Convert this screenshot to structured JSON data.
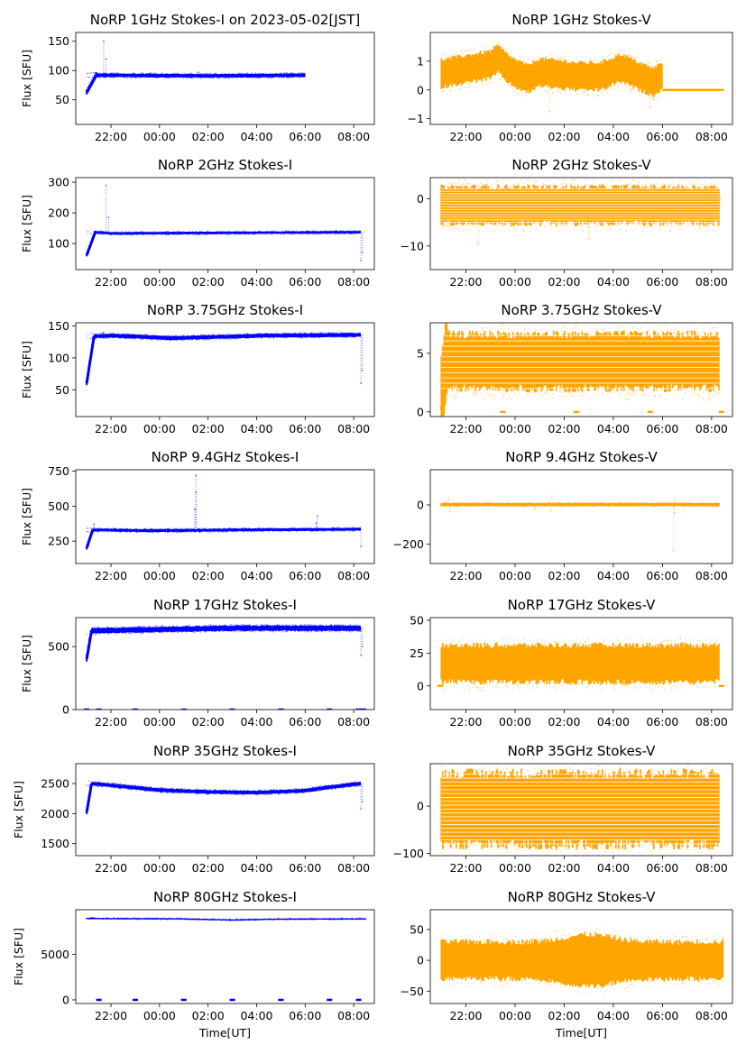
{
  "figure": {
    "colors": {
      "stokes_i": "#0000ff",
      "stokes_v": "#ffa500"
    },
    "time_ticks": [
      "22:00",
      "00:00",
      "02:00",
      "04:00",
      "06:00",
      "08:00"
    ]
  },
  "chart_data": [
    {
      "id": "1ghz-i",
      "type": "scatter",
      "title": "NoRP 1GHz Stokes-I on 2023-05-02[JST]",
      "xlabel": "",
      "ylabel": "Flux [SFU]",
      "ylim": [
        8,
        165
      ],
      "yticks": [
        {
          "v": 50,
          "label": "50"
        },
        {
          "v": 100,
          "label": "100"
        },
        {
          "v": 150,
          "label": "150"
        }
      ],
      "series": [
        {
          "name": "Stokes-I",
          "t_start": 21.0,
          "t_end": 30.0,
          "rise_from": 62,
          "rise_hours": 0.4,
          "levels": [
            [
              21.4,
              92
            ],
            [
              26.0,
              91
            ],
            [
              30.0,
              92
            ]
          ],
          "band_low": -3,
          "band_high": 3,
          "spikes": [
            [
              21.7,
              150
            ],
            [
              21.8,
              120
            ],
            [
              25.6,
              97
            ]
          ]
        }
      ]
    },
    {
      "id": "1ghz-v",
      "type": "scatter",
      "title": "NoRP 1GHz Stokes-V",
      "xlabel": "",
      "ylabel": "",
      "ylim": [
        -1.2,
        2.0
      ],
      "yticks": [
        {
          "v": -1,
          "label": "−1"
        },
        {
          "v": 0,
          "label": "0"
        },
        {
          "v": 1,
          "label": "1"
        }
      ],
      "series": [
        {
          "name": "Stokes-V",
          "t_start": 21.0,
          "t_end": 30.0,
          "levels": [
            [
              21.0,
              0.6
            ],
            [
              22.0,
              0.75
            ],
            [
              23.0,
              0.9
            ],
            [
              23.3,
              1.1
            ],
            [
              23.8,
              0.7
            ],
            [
              24.5,
              0.4
            ],
            [
              25.0,
              0.65
            ],
            [
              26.5,
              0.5
            ],
            [
              27.5,
              0.5
            ],
            [
              28.3,
              0.8
            ],
            [
              28.8,
              0.6
            ],
            [
              29.6,
              0.3
            ],
            [
              30.0,
              0.5
            ]
          ],
          "band_low": -0.5,
          "band_high": 0.45,
          "flat_after": 30.0,
          "flat_value": 0.0,
          "flat_end": 32.5,
          "spikes": [
            [
              25.4,
              -0.75
            ],
            [
              29.5,
              -0.6
            ]
          ]
        }
      ]
    },
    {
      "id": "2ghz-i",
      "type": "scatter",
      "title": "NoRP 2GHz Stokes-I",
      "xlabel": "",
      "ylabel": "Flux [SFU]",
      "ylim": [
        15,
        315
      ],
      "yticks": [
        {
          "v": 100,
          "label": "100"
        },
        {
          "v": 200,
          "label": "200"
        },
        {
          "v": 300,
          "label": "300"
        }
      ],
      "series": [
        {
          "name": "Stokes-I",
          "t_start": 21.0,
          "t_end": 32.3,
          "rise_from": 62,
          "rise_hours": 0.35,
          "levels": [
            [
              21.3,
              137
            ],
            [
              22.0,
              133
            ],
            [
              27.0,
              135
            ],
            [
              32.3,
              137
            ]
          ],
          "band_low": -4,
          "band_high": 4,
          "spikes": [
            [
              21.8,
              290
            ],
            [
              21.9,
              185
            ],
            [
              32.3,
              45
            ],
            [
              32.35,
              70
            ]
          ]
        }
      ]
    },
    {
      "id": "2ghz-v",
      "type": "scatter",
      "title": "NoRP 2GHz Stokes-V",
      "xlabel": "",
      "ylabel": "",
      "ylim": [
        -15,
        4.5
      ],
      "yticks": [
        {
          "v": -10,
          "label": "−10"
        },
        {
          "v": 0,
          "label": "0"
        }
      ],
      "series": [
        {
          "name": "Stokes-V",
          "t_start": 21.0,
          "t_end": 32.3,
          "striped": true,
          "stripe_min": -5.0,
          "stripe_max": 2.5,
          "stripe_step": 0.55,
          "levels": [
            [
              21.0,
              -1.2
            ],
            [
              32.3,
              -1.2
            ]
          ],
          "band_low": -4,
          "band_high": 3.7,
          "spikes": [
            [
              22.5,
              -9.5
            ],
            [
              27.0,
              -8.5
            ],
            [
              32.35,
              0.2
            ]
          ]
        }
      ]
    },
    {
      "id": "3ghz-i",
      "type": "scatter",
      "title": "NoRP 3.75GHz Stokes-I",
      "xlabel": "",
      "ylabel": "Flux [SFU]",
      "ylim": [
        8,
        155
      ],
      "yticks": [
        {
          "v": 50,
          "label": "50"
        },
        {
          "v": 100,
          "label": "100"
        },
        {
          "v": 150,
          "label": "150"
        }
      ],
      "series": [
        {
          "name": "Stokes-I",
          "t_start": 21.0,
          "t_end": 32.3,
          "rise_from": 60,
          "rise_hours": 0.3,
          "levels": [
            [
              21.3,
              134
            ],
            [
              22.0,
              135
            ],
            [
              24.5,
              131
            ],
            [
              26.5,
              133
            ],
            [
              28.5,
              135
            ],
            [
              32.3,
              136
            ]
          ],
          "band_low": -3,
          "band_high": 3,
          "spikes": [
            [
              21.7,
              140
            ],
            [
              32.3,
              60
            ],
            [
              32.35,
              80
            ]
          ]
        }
      ]
    },
    {
      "id": "3ghz-v",
      "type": "scatter",
      "title": "NoRP 3.75GHz Stokes-V",
      "xlabel": "",
      "ylabel": "",
      "ylim": [
        -0.4,
        7.6
      ],
      "yticks": [
        {
          "v": 0,
          "label": "0"
        },
        {
          "v": 5,
          "label": "5"
        }
      ],
      "series": [
        {
          "name": "Stokes-V",
          "t_start": 21.0,
          "t_end": 32.3,
          "striped": true,
          "stripe_min": 2.0,
          "stripe_max": 6.5,
          "stripe_step": 0.45,
          "levels": [
            [
              21.0,
              4.3
            ],
            [
              32.3,
              4.3
            ]
          ],
          "band_low": -2.3,
          "band_high": 2.3,
          "rise_from": 0.2,
          "rise_hours": 0.25,
          "flat_marks": [
            [
              23.5,
              0.0
            ],
            [
              26.5,
              0.0
            ],
            [
              29.5,
              0.0
            ],
            [
              32.4,
              0.0
            ]
          ]
        }
      ]
    },
    {
      "id": "9ghz-i",
      "type": "scatter",
      "title": "NoRP 9.4GHz Stokes-I",
      "xlabel": "",
      "ylabel": "Flux [SFU]",
      "ylim": [
        90,
        760
      ],
      "yticks": [
        {
          "v": 250,
          "label": "250"
        },
        {
          "v": 500,
          "label": "500"
        },
        {
          "v": 750,
          "label": "750"
        }
      ],
      "series": [
        {
          "name": "Stokes-I",
          "t_start": 21.0,
          "t_end": 32.3,
          "rise_from": 200,
          "rise_hours": 0.25,
          "levels": [
            [
              21.3,
              330
            ],
            [
              24.0,
              325
            ],
            [
              27.0,
              330
            ],
            [
              32.3,
              335
            ]
          ],
          "band_low": -10,
          "band_high": 10,
          "spikes": [
            [
              25.5,
              720
            ],
            [
              25.5,
              600
            ],
            [
              25.45,
              480
            ],
            [
              21.3,
              370
            ],
            [
              30.5,
              430
            ],
            [
              30.45,
              380
            ],
            [
              32.3,
              210
            ]
          ]
        }
      ]
    },
    {
      "id": "9ghz-v",
      "type": "scatter",
      "title": "NoRP 9.4GHz Stokes-V",
      "xlabel": "",
      "ylabel": "",
      "ylim": [
        -300,
        180
      ],
      "yticks": [
        {
          "v": -200,
          "label": "−200"
        },
        {
          "v": 0,
          "label": "0"
        }
      ],
      "series": [
        {
          "name": "Stokes-V",
          "t_start": 21.0,
          "t_end": 32.3,
          "levels": [
            [
              21.0,
              2
            ],
            [
              32.3,
              2
            ]
          ],
          "band_low": -8,
          "band_high": 8,
          "spikes": [
            [
              21.3,
              30
            ],
            [
              21.35,
              -35
            ],
            [
              25.5,
              45
            ],
            [
              25.45,
              -30
            ],
            [
              24.8,
              -25
            ],
            [
              30.5,
              30
            ],
            [
              30.5,
              -40
            ],
            [
              30.45,
              -235
            ]
          ]
        }
      ]
    },
    {
      "id": "17ghz-i",
      "type": "scatter",
      "title": "NoRP 17GHz Stokes-I",
      "xlabel": "",
      "ylabel": "Flux [SFU]",
      "ylim": [
        0,
        730
      ],
      "yticks": [
        {
          "v": 0,
          "label": "0"
        },
        {
          "v": 500,
          "label": "500"
        }
      ],
      "series": [
        {
          "name": "Stokes-I",
          "t_start": 21.0,
          "t_end": 32.3,
          "rise_from": 400,
          "rise_hours": 0.2,
          "levels": [
            [
              21.2,
              625
            ],
            [
              24.0,
              635
            ],
            [
              27.0,
              645
            ],
            [
              32.3,
              645
            ]
          ],
          "band_low": -20,
          "band_high": 22,
          "flat_marks": [
            [
              21.0,
              0
            ],
            [
              21.5,
              0
            ],
            [
              23.0,
              0
            ],
            [
              25.0,
              0
            ],
            [
              27.0,
              0
            ],
            [
              29.0,
              0
            ],
            [
              31.0,
              0
            ],
            [
              32.2,
              0
            ],
            [
              32.4,
              0
            ]
          ],
          "spikes": [
            [
              32.3,
              430
            ],
            [
              32.35,
              500
            ]
          ]
        }
      ]
    },
    {
      "id": "17ghz-v",
      "type": "scatter",
      "title": "NoRP 17GHz Stokes-V",
      "xlabel": "",
      "ylabel": "",
      "ylim": [
        -18,
        52
      ],
      "yticks": [
        {
          "v": 0,
          "label": "0"
        },
        {
          "v": 25,
          "label": "25"
        },
        {
          "v": 50,
          "label": "50"
        }
      ],
      "series": [
        {
          "name": "Stokes-V",
          "t_start": 21.0,
          "t_end": 32.3,
          "levels": [
            [
              21.0,
              17
            ],
            [
              32.3,
              17
            ]
          ],
          "band_low": -14,
          "band_high": 14,
          "flat_marks": [
            [
              20.95,
              0
            ],
            [
              32.4,
              0
            ]
          ]
        }
      ]
    },
    {
      "id": "35ghz-i",
      "type": "scatter",
      "title": "NoRP 35GHz Stokes-I",
      "xlabel": "",
      "ylabel": "Flux [SFU]",
      "ylim": [
        1300,
        2830
      ],
      "yticks": [
        {
          "v": 1500,
          "label": "1500"
        },
        {
          "v": 2000,
          "label": "2000"
        },
        {
          "v": 2500,
          "label": "2500"
        }
      ],
      "series": [
        {
          "name": "Stokes-I",
          "t_start": 21.0,
          "t_end": 32.3,
          "rise_from": 2020,
          "rise_hours": 0.2,
          "levels": [
            [
              21.2,
              2500
            ],
            [
              22.5,
              2450
            ],
            [
              24.0,
              2390
            ],
            [
              26.0,
              2360
            ],
            [
              28.0,
              2350
            ],
            [
              30.0,
              2380
            ],
            [
              31.0,
              2440
            ],
            [
              32.3,
              2500
            ]
          ],
          "band_low": -30,
          "band_high": 30,
          "spikes": [
            [
              32.3,
              2080
            ],
            [
              32.35,
              2200
            ]
          ]
        }
      ]
    },
    {
      "id": "35ghz-v",
      "type": "scatter",
      "title": "NoRP 35GHz Stokes-V",
      "xlabel": "",
      "ylabel": "",
      "ylim": [
        -105,
        90
      ],
      "yticks": [
        {
          "v": -100,
          "label": "−100"
        },
        {
          "v": 0,
          "label": "0"
        }
      ],
      "series": [
        {
          "name": "Stokes-V",
          "t_start": 21.0,
          "t_end": 32.3,
          "striped": true,
          "stripe_min": -80,
          "stripe_max": 68,
          "stripe_step": 8.2,
          "levels": [
            [
              21.0,
              -6
            ],
            [
              32.3,
              -6
            ]
          ],
          "band_low": -75,
          "band_high": 75
        }
      ]
    },
    {
      "id": "80ghz-i",
      "type": "scatter",
      "title": "NoRP 80GHz Stokes-I",
      "xlabel": "Time[UT]",
      "ylabel": "Flux [SFU]",
      "ylim": [
        -400,
        9900
      ],
      "yticks": [
        {
          "v": 0,
          "label": "0"
        },
        {
          "v": 5000,
          "label": "5000"
        }
      ],
      "series": [
        {
          "name": "Stokes-I",
          "t_start": 21.0,
          "t_end": 32.5,
          "levels": [
            [
              21.0,
              8950
            ],
            [
              25.0,
              8900
            ],
            [
              27.0,
              8780
            ],
            [
              29.0,
              8880
            ],
            [
              32.5,
              8900
            ]
          ],
          "band_low": -60,
          "band_high": 60,
          "flat_marks": [
            [
              21.5,
              0
            ],
            [
              23.0,
              0
            ],
            [
              25.0,
              0
            ],
            [
              27.0,
              0
            ],
            [
              29.0,
              0
            ],
            [
              31.0,
              0
            ],
            [
              32.2,
              0
            ]
          ]
        }
      ]
    },
    {
      "id": "80ghz-v",
      "type": "scatter",
      "title": "NoRP 80GHz Stokes-V",
      "xlabel": "Time[UT]",
      "ylabel": "",
      "ylim": [
        -70,
        82
      ],
      "yticks": [
        {
          "v": -50,
          "label": "−50"
        },
        {
          "v": 0,
          "label": "0"
        },
        {
          "v": 50,
          "label": "50"
        }
      ],
      "series": [
        {
          "name": "Stokes-V",
          "t_start": 21.0,
          "t_end": 32.5,
          "levels": [
            [
              21.0,
              0
            ],
            [
              32.5,
              0
            ]
          ],
          "band_low": -30,
          "band_high": 30,
          "bulge": [
            27.0,
            12
          ]
        }
      ]
    }
  ]
}
